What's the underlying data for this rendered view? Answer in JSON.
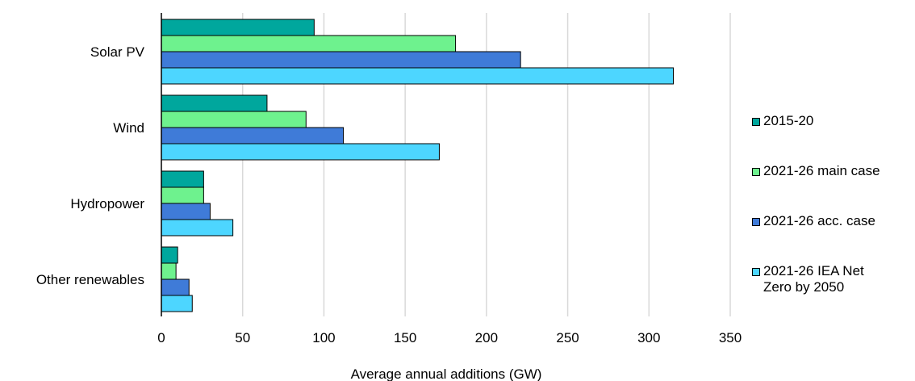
{
  "chart_data": {
    "type": "bar",
    "orientation": "horizontal",
    "categories": [
      "Solar PV",
      "Wind",
      "Hydropower",
      "Other renewables"
    ],
    "series": [
      {
        "name": "2015-20",
        "color": "#00A79D",
        "values": [
          94,
          65,
          26,
          10
        ]
      },
      {
        "name": "2021-26 main case",
        "color": "#6EF28E",
        "values": [
          181,
          89,
          26,
          9
        ]
      },
      {
        "name": "2021-26 acc. case",
        "color": "#3F7BD8",
        "values": [
          221,
          112,
          30,
          17
        ]
      },
      {
        "name": "2021-26 IEA Net\nZero by 2050",
        "color": "#4DD6FF",
        "values": [
          315,
          171,
          44,
          19
        ]
      }
    ],
    "xlabel": "Average annual additions (GW)",
    "xlim": [
      0,
      350
    ],
    "xticks": [
      0,
      50,
      100,
      150,
      200,
      250,
      300,
      350
    ],
    "grid": true,
    "legend_position": "right"
  }
}
